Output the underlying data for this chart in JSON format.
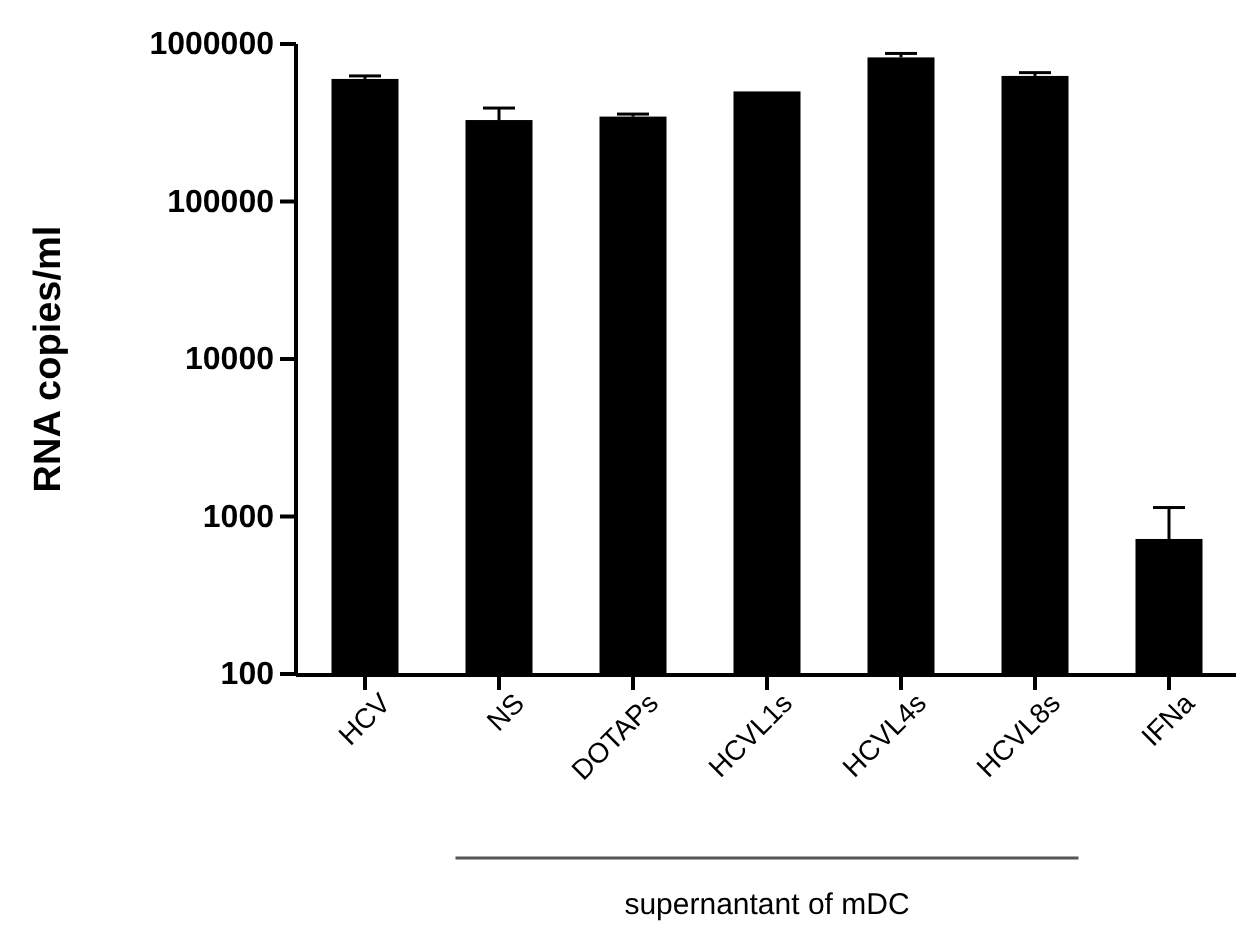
{
  "chart_data": {
    "type": "bar",
    "ylabel": "RNA copies/ml",
    "categories": [
      "HCV",
      "NS",
      "DOTAPs",
      "HCVL1s",
      "HCVL4s",
      "HCVL8s",
      "IFNa"
    ],
    "values": [
      600000,
      329000,
      346000,
      500000,
      822000,
      627000,
      720
    ],
    "errors": [
      [
        600000,
        627000
      ],
      [
        329000,
        392000
      ],
      [
        346000,
        359000
      ],
      null,
      [
        822000,
        871000
      ],
      [
        627000,
        658000
      ],
      [
        720,
        1140
      ]
    ],
    "color": "#000000",
    "log": true,
    "ylim": [
      100,
      1000000
    ],
    "yticks": [
      100,
      1000,
      10000,
      100000,
      1000000
    ],
    "grid": false,
    "annotations": [
      "supernantant of mDC"
    ]
  }
}
